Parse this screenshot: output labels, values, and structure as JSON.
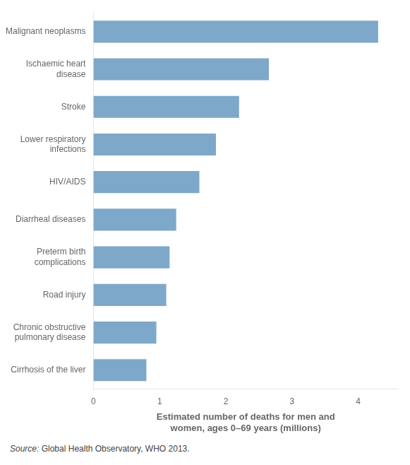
{
  "chart_data": {
    "type": "bar",
    "orientation": "horizontal",
    "categories": [
      "Cirrhosis of the liver",
      "Chronic obstructive\npulmonary disease",
      "Road injury",
      "Preterm birth\ncomplications",
      "Diarrheal diseases",
      "HIV/AIDS",
      "Lower respiratory\ninfections",
      "Stroke",
      "Ischaemic heart\ndisease",
      "Malignant neoplasms"
    ],
    "values": [
      0.8,
      0.95,
      1.1,
      1.15,
      1.25,
      1.6,
      1.85,
      2.2,
      2.65,
      4.3
    ],
    "color": "#7ea8c9",
    "xlabel": "Estimated number of deaths for men and\nwomen, ages 0–69 years (millions)",
    "xlim": [
      0,
      4.6
    ],
    "xticks": [
      0,
      1,
      2,
      3,
      4
    ],
    "grid": false,
    "legend": false,
    "annotations": [
      "Source: Global Health Observatory, WHO 2013."
    ]
  }
}
